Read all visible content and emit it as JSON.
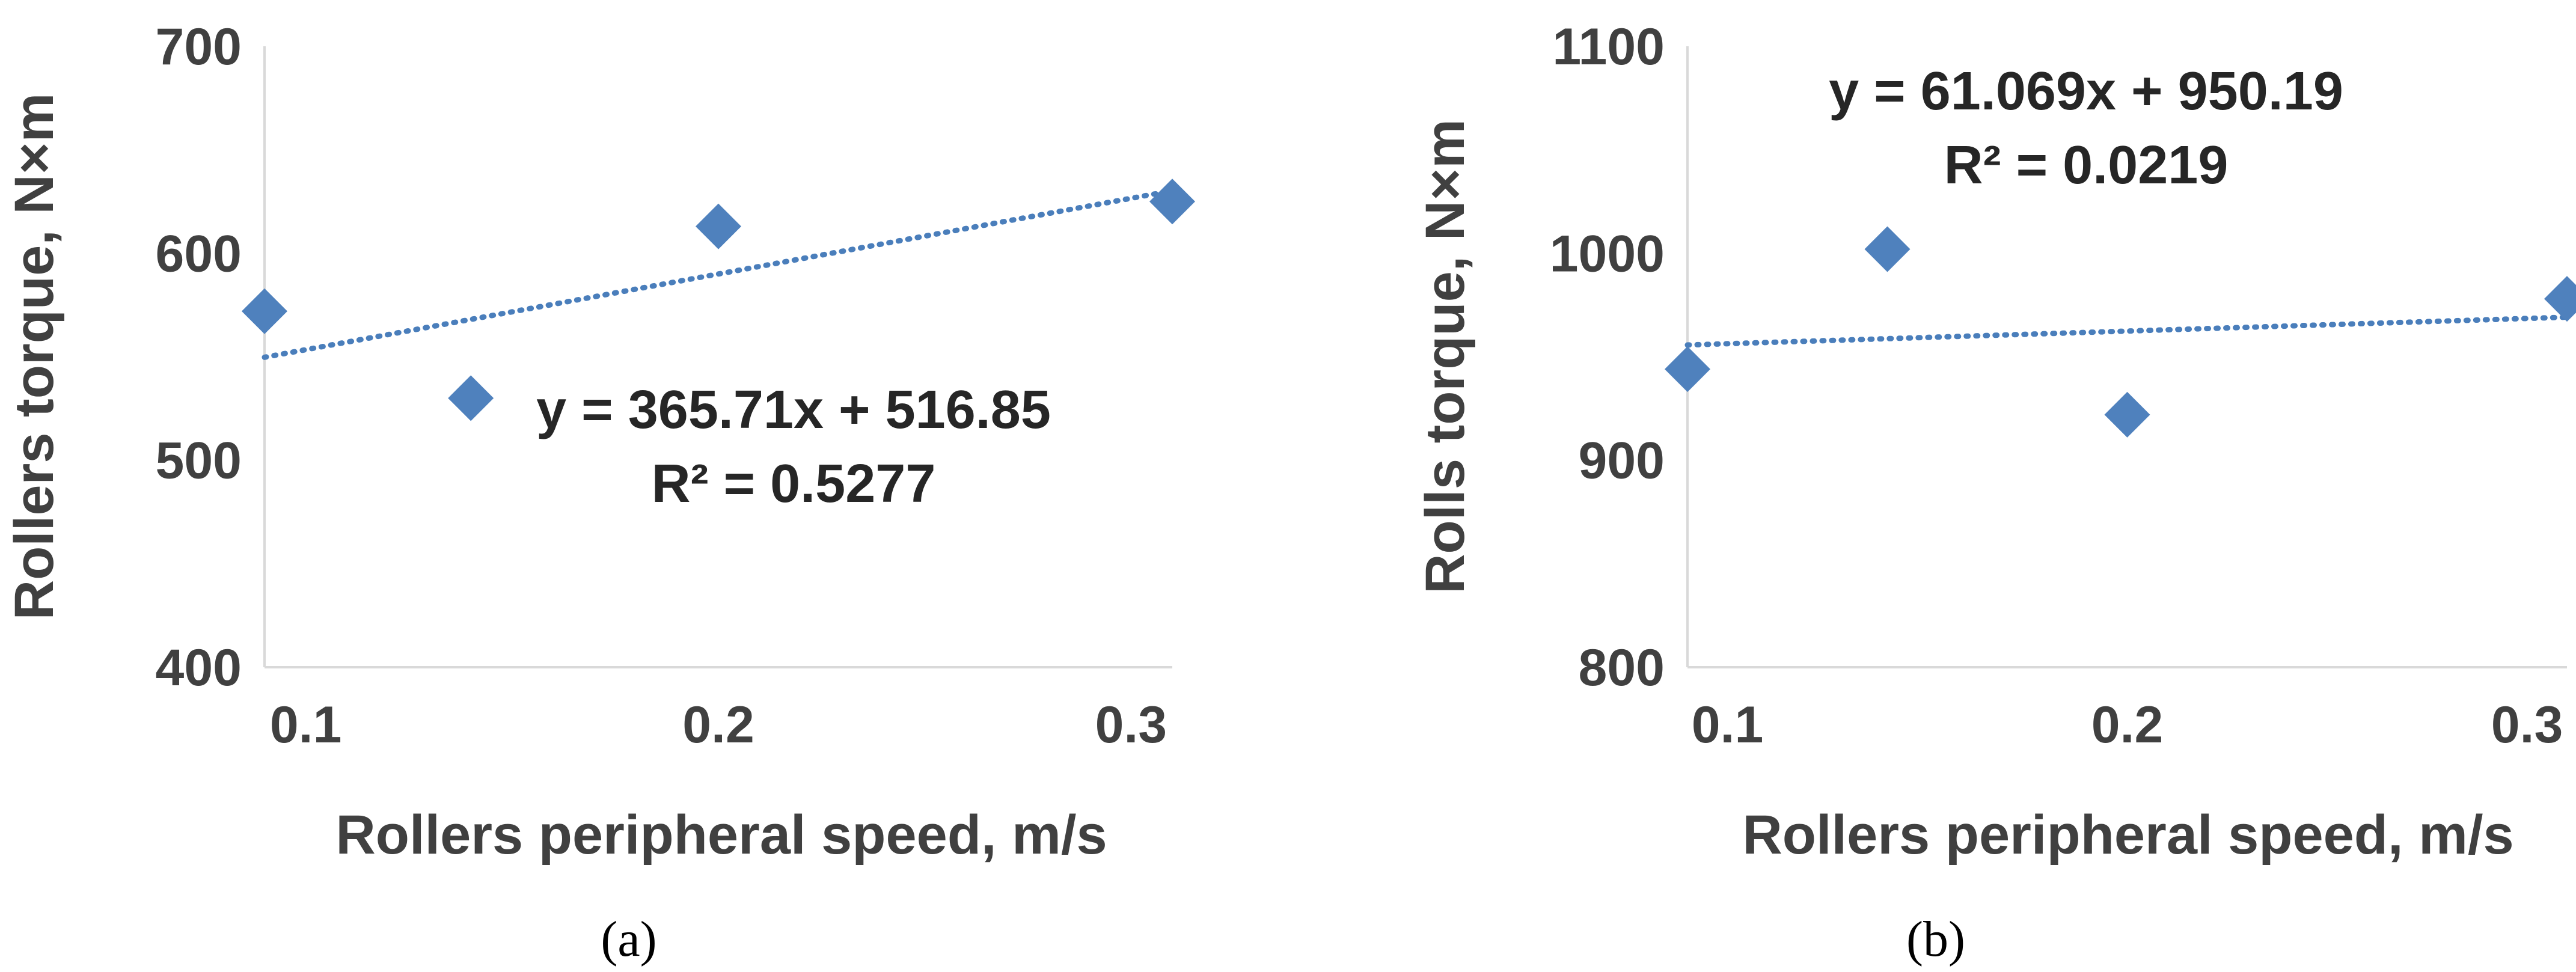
{
  "chart_data": [
    {
      "type": "scatter",
      "panel_label": "(a)",
      "xlabel": "Rollers peripheral speed, m/s",
      "ylabel": "Rollers torque, N×m",
      "xlim": [
        0.09,
        0.31
      ],
      "ylim": [
        400,
        700
      ],
      "x_ticks": [
        0.1,
        0.2,
        0.3
      ],
      "x_tick_labels": [
        "0.1",
        "0.2",
        "0.3"
      ],
      "y_ticks": [
        400,
        500,
        600,
        700
      ],
      "y_tick_labels": [
        "400",
        "500",
        "600",
        "700"
      ],
      "grid": false,
      "legend": "none",
      "marker_color": "#4f81bd",
      "series": [
        {
          "x": [
            0.09,
            0.14,
            0.2,
            0.31
          ],
          "y": [
            572,
            530,
            613,
            625
          ]
        }
      ],
      "trendline": {
        "type": "linear",
        "slope": 365.71,
        "intercept": 516.85,
        "equation": "y = 365.71x + 516.85",
        "r_squared": "R² = 0.5277"
      }
    },
    {
      "type": "scatter",
      "panel_label": "(b)",
      "xlabel": "Rollers peripheral speed, m/s",
      "ylabel": "Rolls torque, N×m",
      "xlim": [
        0.09,
        0.31
      ],
      "ylim": [
        800,
        1100
      ],
      "x_ticks": [
        0.1,
        0.2,
        0.3
      ],
      "x_tick_labels": [
        "0.1",
        "0.2",
        "0.3"
      ],
      "y_ticks": [
        800,
        900,
        1000,
        1100
      ],
      "y_tick_labels": [
        "800",
        "900",
        "1000",
        "1100"
      ],
      "grid": false,
      "legend": "none",
      "marker_color": "#4f81bd",
      "series": [
        {
          "x": [
            0.09,
            0.14,
            0.2,
            0.31
          ],
          "y": [
            944,
            1002,
            922,
            978
          ]
        }
      ],
      "trendline": {
        "type": "linear",
        "slope": 61.069,
        "intercept": 950.19,
        "equation": "y = 61.069x + 950.19",
        "r_squared": "R² = 0.0219"
      }
    }
  ]
}
